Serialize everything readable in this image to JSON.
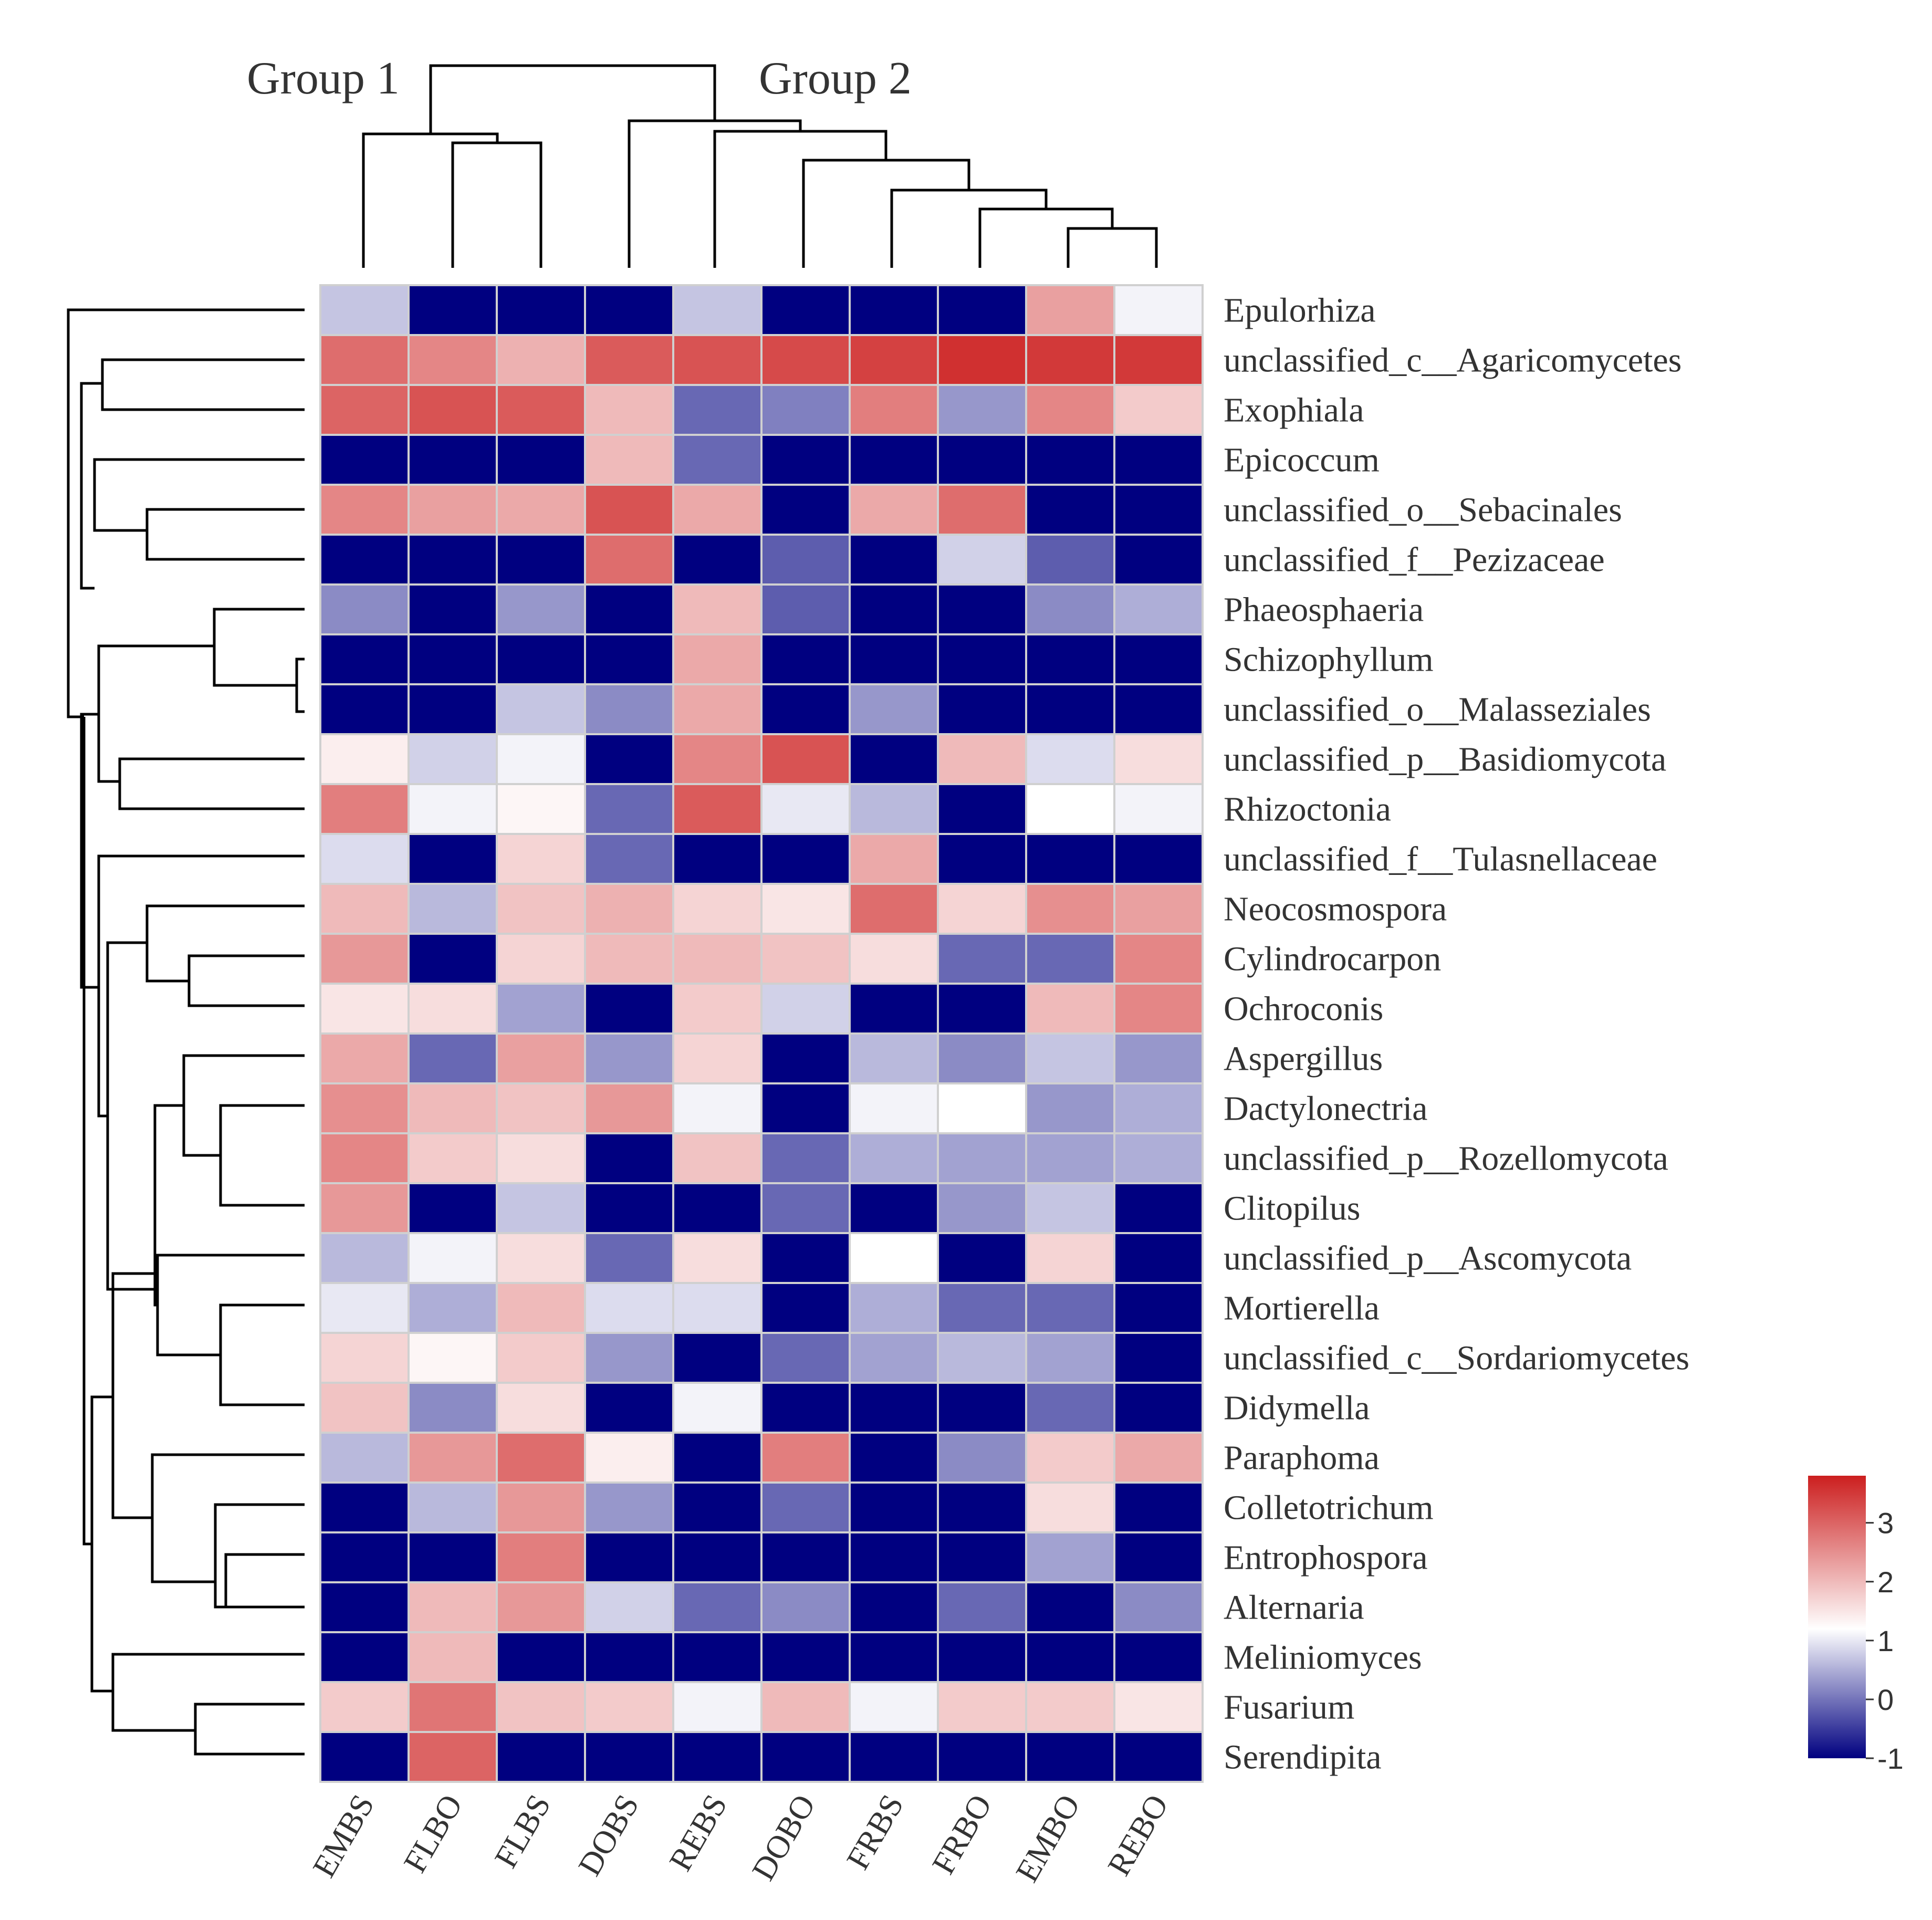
{
  "chart_data": {
    "type": "heatmap",
    "title": "",
    "group_labels": [
      "Group 1",
      "Group 2"
    ],
    "columns": [
      "EMBS",
      "FLBO",
      "FLBS",
      "DOBS",
      "REBS",
      "DOBO",
      "FRBS",
      "FRBO",
      "EMBO",
      "REBO"
    ],
    "rows": [
      "Epulorhiza",
      "unclassified_c__Agaricomycetes",
      "Exophiala",
      "Epicoccum",
      "unclassified_o__Sebacinales",
      "unclassified_f__Pezizaceae",
      "Phaeosphaeria",
      "Schizophyllum",
      "unclassified_o__Malasseziales",
      "unclassified_p__Basidiomycota",
      "Rhizoctonia",
      "unclassified_f__Tulasnellaceae",
      "Neocosmospora",
      "Cylindrocarpon",
      "Ochroconis",
      "Aspergillus",
      "Dactylonectria",
      "unclassified_p__Rozellomycota",
      "Clitopilus",
      "unclassified_p__Ascomycota",
      "Mortierella",
      "unclassified_c__Sordariomycetes",
      "Didymella",
      "Paraphoma",
      "Colletotrichum",
      "Entrophospora",
      "Alternaria",
      "Meliniomyces",
      "Fusarium",
      "Serendipita"
    ],
    "values": [
      [
        0.7,
        -1,
        -1,
        -1,
        0.7,
        -1,
        -1,
        -1,
        2.3,
        1.1
      ],
      [
        2.9,
        2.6,
        2.1,
        3.1,
        3.2,
        3.3,
        3.4,
        3.6,
        3.5,
        3.5
      ],
      [
        3.0,
        3.2,
        3.1,
        2.0,
        -0.1,
        0.1,
        2.7,
        0.3,
        2.6,
        1.8
      ],
      [
        -1,
        -1,
        -1,
        2.0,
        -0.1,
        -1,
        -1,
        -1,
        -1,
        -1
      ],
      [
        2.6,
        2.3,
        2.2,
        3.2,
        2.2,
        -1,
        2.2,
        2.9,
        -1,
        -1
      ],
      [
        -1,
        -1,
        -1,
        2.9,
        -1,
        -0.2,
        -1,
        0.8,
        -0.2,
        -1
      ],
      [
        0.2,
        -1,
        0.3,
        -1,
        2.0,
        -0.2,
        -1,
        -1,
        0.2,
        0.5
      ],
      [
        -1,
        -1,
        -1,
        -1,
        2.2,
        -1,
        -1,
        -1,
        -1,
        -1
      ],
      [
        -1,
        -1,
        0.7,
        0.2,
        2.2,
        -1,
        0.3,
        -1,
        -1,
        -1
      ],
      [
        1.4,
        0.8,
        1.1,
        -1,
        2.6,
        3.2,
        -1,
        2.0,
        0.9,
        1.6
      ],
      [
        2.7,
        1.1,
        1.3,
        -0.1,
        3.1,
        1.0,
        0.6,
        -1,
        1.2,
        1.1
      ],
      [
        0.9,
        -1,
        1.7,
        -0.1,
        -1,
        -1,
        2.2,
        -1,
        -1,
        -1
      ],
      [
        2.0,
        0.6,
        1.9,
        2.1,
        1.7,
        1.5,
        2.9,
        1.7,
        2.5,
        2.3
      ],
      [
        2.4,
        -1,
        1.7,
        2.0,
        2.0,
        1.9,
        1.6,
        -0.1,
        -0.1,
        2.6
      ],
      [
        1.5,
        1.6,
        0.4,
        -1,
        1.8,
        0.8,
        -1,
        -1,
        2.0,
        2.6
      ],
      [
        2.2,
        -0.1,
        2.3,
        0.3,
        1.7,
        -1,
        0.6,
        0.2,
        0.7,
        0.3
      ],
      [
        2.5,
        2.0,
        1.9,
        2.4,
        1.1,
        -1,
        1.1,
        1.2,
        0.3,
        0.5
      ],
      [
        2.6,
        1.8,
        1.6,
        -1,
        1.9,
        -0.1,
        0.5,
        0.4,
        0.4,
        0.5
      ],
      [
        2.4,
        -1,
        0.7,
        -1,
        -1,
        -0.1,
        -1,
        0.3,
        0.7,
        -1
      ],
      [
        0.6,
        1.1,
        1.6,
        -0.1,
        1.6,
        -1,
        1.2,
        -1,
        1.7,
        -1
      ],
      [
        1.0,
        0.5,
        2.0,
        0.9,
        0.9,
        -1,
        0.5,
        -0.1,
        -0.1,
        -1
      ],
      [
        1.7,
        1.3,
        1.8,
        0.3,
        -1,
        -0.1,
        0.4,
        0.6,
        0.4,
        -1
      ],
      [
        1.9,
        0.2,
        1.6,
        -1,
        1.1,
        -1,
        -1,
        -1,
        -0.1,
        -1
      ],
      [
        0.6,
        2.4,
        2.9,
        1.4,
        -1,
        2.7,
        -1,
        0.2,
        1.8,
        2.2
      ],
      [
        -1,
        0.6,
        2.4,
        0.3,
        -1,
        -0.1,
        -1,
        -1,
        1.6,
        -1
      ],
      [
        -1,
        -1,
        2.7,
        -1,
        -1,
        -1,
        -1,
        -1,
        0.4,
        -1
      ],
      [
        -1,
        2.0,
        2.4,
        0.8,
        -0.1,
        0.2,
        -1,
        -0.1,
        -1,
        0.2
      ],
      [
        -1,
        2.0,
        -1,
        -1,
        -1,
        -1,
        -1,
        -1,
        -1,
        -1
      ],
      [
        1.8,
        2.8,
        1.9,
        1.8,
        1.1,
        2.0,
        1.1,
        1.8,
        1.8,
        1.5
      ],
      [
        -1,
        3.0,
        -1,
        -1,
        -1,
        -1,
        -1,
        -1,
        -1,
        -1
      ]
    ],
    "color_scale": {
      "min": -1,
      "max": 3.8,
      "low_color": "#000080",
      "mid_color": "#ffffff",
      "high_color": "#cc1f1f",
      "mid_value": 1.2,
      "ticks": [
        -1,
        0,
        1,
        2,
        3
      ],
      "tick_labels": [
        "-1",
        "0",
        "1",
        "2",
        "3"
      ]
    },
    "legend_position": "bottom-right"
  }
}
